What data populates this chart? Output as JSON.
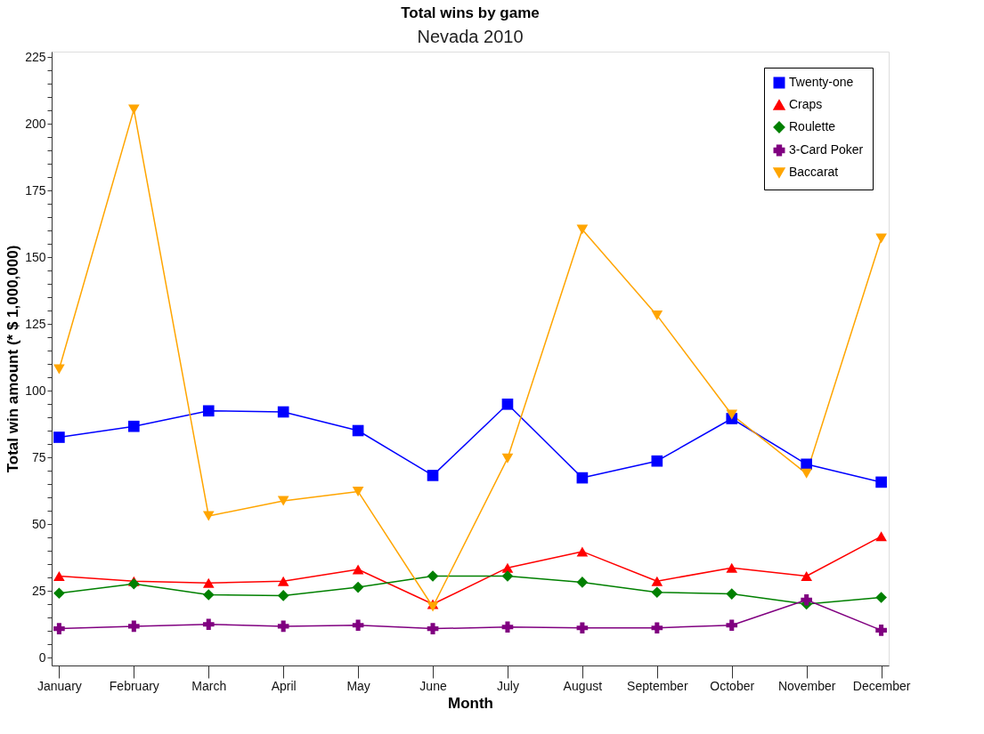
{
  "chart_data": {
    "type": "line",
    "title": "Total wins by game",
    "subtitle": "Nevada 2010",
    "xlabel": "Month",
    "ylabel": "Total win amount (* $ 1,000,000)",
    "categories": [
      "January",
      "February",
      "March",
      "April",
      "May",
      "June",
      "July",
      "August",
      "September",
      "October",
      "November",
      "December"
    ],
    "ylim": [
      -3,
      227
    ],
    "yticks": [
      0,
      {
        "value": 5,
        "label": null
      },
      {
        "value": 10,
        "label": null
      },
      {
        "value": 15,
        "label": null
      },
      {
        "value": 20,
        "label": null
      },
      25,
      {
        "value": 30,
        "label": null
      },
      {
        "value": 35,
        "label": null
      },
      {
        "value": 40,
        "label": null
      },
      {
        "value": 45,
        "label": null
      },
      50,
      {
        "value": 55,
        "label": null
      },
      {
        "value": 60,
        "label": null
      },
      {
        "value": 65,
        "label": null
      },
      {
        "value": 70,
        "label": null
      },
      75,
      {
        "value": 80,
        "label": null
      },
      {
        "value": 85,
        "label": null
      },
      {
        "value": 90,
        "label": null
      },
      {
        "value": 95,
        "label": null
      },
      100,
      {
        "value": 105,
        "label": null
      },
      {
        "value": 110,
        "label": null
      },
      {
        "value": 115,
        "label": null
      },
      {
        "value": 120,
        "label": null
      },
      125,
      {
        "value": 130,
        "label": null
      },
      {
        "value": 135,
        "label": null
      },
      {
        "value": 140,
        "label": null
      },
      {
        "value": 145,
        "label": null
      },
      150,
      {
        "value": 155,
        "label": null
      },
      {
        "value": 160,
        "label": null
      },
      {
        "value": 165,
        "label": null
      },
      {
        "value": 170,
        "label": null
      },
      175,
      {
        "value": 180,
        "label": null
      },
      {
        "value": 185,
        "label": null
      },
      {
        "value": 190,
        "label": null
      },
      {
        "value": 195,
        "label": null
      },
      200,
      {
        "value": 205,
        "label": null
      },
      {
        "value": 210,
        "label": null
      },
      {
        "value": 215,
        "label": null
      },
      {
        "value": 220,
        "label": null
      },
      225
    ],
    "grid": false,
    "legend": "top right",
    "line_style": "solid",
    "series": [
      {
        "name": "Twenty-one",
        "color": "#0000ff",
        "marker": "square",
        "values": [
          82.5,
          86.6,
          92.4,
          92,
          85,
          68.2,
          94.9,
          67.3,
          73.6,
          89.5,
          72.4,
          65.7
        ]
      },
      {
        "name": "Craps",
        "color": "#ff0000",
        "marker": "triangle",
        "values": [
          30.5,
          28.6,
          27.9,
          28.6,
          33,
          20,
          33.6,
          39.7,
          28.6,
          33.6,
          30.5,
          45.4
        ]
      },
      {
        "name": "Roulette",
        "color": "#008000",
        "marker": "diamond",
        "values": [
          24.1,
          27.6,
          23.5,
          23.2,
          26.3,
          30.5,
          30.5,
          28.2,
          24.4,
          23.8,
          20,
          22.5
        ]
      },
      {
        "name": "3-Card Poker",
        "color": "#800080",
        "marker": "cross",
        "values": [
          10.8,
          11.7,
          12.4,
          11.7,
          12.1,
          10.8,
          11.4,
          11.1,
          11.1,
          12.1,
          21.6,
          10.2
        ]
      },
      {
        "name": "Baccarat",
        "color": "#ffa500",
        "marker": "triangle-down",
        "values": [
          108,
          205.3,
          53,
          58.7,
          62.2,
          19,
          74.6,
          160.3,
          128.2,
          91,
          68.9,
          157
        ]
      }
    ]
  }
}
